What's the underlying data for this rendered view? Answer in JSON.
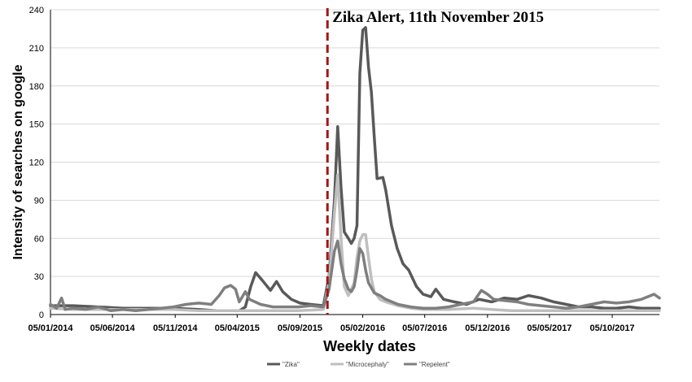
{
  "chart_data": {
    "type": "line",
    "xlabel": "Weekly dates",
    "ylabel": "Intensity of searches on google",
    "ylim": [
      0,
      240
    ],
    "yticks": [
      0,
      30,
      60,
      90,
      120,
      150,
      180,
      210,
      240
    ],
    "xlim": [
      "2014-01-05",
      "2018-01-28"
    ],
    "xticks": [
      "05/01/2014",
      "05/06/2014",
      "05/11/2014",
      "05/04/2015",
      "05/09/2015",
      "05/02/2016",
      "05/07/2016",
      "05/12/2016",
      "05/05/2017",
      "05/10/2017"
    ],
    "grid": "horizontal",
    "legend_position": "bottom",
    "annotation": {
      "text": "Zika Alert, 11th November 2015",
      "date": "2015-11-11",
      "color": "#a31515"
    },
    "series": [
      {
        "name": "\"Zika\"",
        "color": "#595959",
        "points": [
          [
            "2014-01-05",
            7
          ],
          [
            "2014-03-01",
            7
          ],
          [
            "2014-05-01",
            6
          ],
          [
            "2014-07-01",
            5
          ],
          [
            "2014-09-01",
            5
          ],
          [
            "2014-11-01",
            5
          ],
          [
            "2015-01-01",
            4
          ],
          [
            "2015-02-15",
            3
          ],
          [
            "2015-04-10",
            3
          ],
          [
            "2015-04-25",
            6
          ],
          [
            "2015-05-08",
            22
          ],
          [
            "2015-05-20",
            33
          ],
          [
            "2015-06-05",
            27
          ],
          [
            "2015-06-25",
            19
          ],
          [
            "2015-07-10",
            26
          ],
          [
            "2015-07-25",
            18
          ],
          [
            "2015-08-15",
            12
          ],
          [
            "2015-09-05",
            9
          ],
          [
            "2015-10-01",
            8
          ],
          [
            "2015-11-01",
            7
          ],
          [
            "2015-11-15",
            30
          ],
          [
            "2015-11-28",
            90
          ],
          [
            "2015-12-06",
            148
          ],
          [
            "2015-12-14",
            100
          ],
          [
            "2015-12-22",
            65
          ],
          [
            "2016-01-01",
            60
          ],
          [
            "2016-01-08",
            56
          ],
          [
            "2016-01-15",
            60
          ],
          [
            "2016-01-22",
            70
          ],
          [
            "2016-01-29",
            190
          ],
          [
            "2016-02-05",
            224
          ],
          [
            "2016-02-12",
            226
          ],
          [
            "2016-02-19",
            195
          ],
          [
            "2016-02-26",
            175
          ],
          [
            "2016-03-04",
            140
          ],
          [
            "2016-03-11",
            107
          ],
          [
            "2016-03-25",
            108
          ],
          [
            "2016-04-01",
            98
          ],
          [
            "2016-04-15",
            70
          ],
          [
            "2016-04-29",
            52
          ],
          [
            "2016-05-13",
            40
          ],
          [
            "2016-05-27",
            35
          ],
          [
            "2016-06-15",
            22
          ],
          [
            "2016-07-01",
            16
          ],
          [
            "2016-07-20",
            14
          ],
          [
            "2016-08-01",
            20
          ],
          [
            "2016-08-20",
            12
          ],
          [
            "2016-09-15",
            10
          ],
          [
            "2016-10-15",
            8
          ],
          [
            "2016-11-15",
            12
          ],
          [
            "2016-12-15",
            10
          ],
          [
            "2017-01-15",
            13
          ],
          [
            "2017-02-15",
            12
          ],
          [
            "2017-03-15",
            15
          ],
          [
            "2017-04-15",
            13
          ],
          [
            "2017-05-15",
            10
          ],
          [
            "2017-06-15",
            8
          ],
          [
            "2017-07-15",
            6
          ],
          [
            "2017-08-15",
            6
          ],
          [
            "2017-09-15",
            5
          ],
          [
            "2017-10-15",
            5
          ],
          [
            "2017-11-15",
            6
          ],
          [
            "2017-12-15",
            5
          ],
          [
            "2018-01-28",
            5
          ]
        ]
      },
      {
        "name": "\"Microcephaly\"",
        "color": "#bfbfbf",
        "points": [
          [
            "2014-01-05",
            5
          ],
          [
            "2014-03-01",
            4
          ],
          [
            "2014-05-01",
            4
          ],
          [
            "2014-07-01",
            4
          ],
          [
            "2014-09-01",
            4
          ],
          [
            "2014-11-01",
            4
          ],
          [
            "2015-01-01",
            3
          ],
          [
            "2015-03-01",
            3
          ],
          [
            "2015-05-01",
            3
          ],
          [
            "2015-07-01",
            3
          ],
          [
            "2015-09-01",
            3
          ],
          [
            "2015-11-01",
            4
          ],
          [
            "2015-11-15",
            25
          ],
          [
            "2015-11-28",
            80
          ],
          [
            "2015-12-06",
            110
          ],
          [
            "2015-12-14",
            60
          ],
          [
            "2015-12-22",
            22
          ],
          [
            "2016-01-01",
            15
          ],
          [
            "2016-01-08",
            20
          ],
          [
            "2016-01-15",
            25
          ],
          [
            "2016-01-22",
            45
          ],
          [
            "2016-01-29",
            58
          ],
          [
            "2016-02-05",
            63
          ],
          [
            "2016-02-12",
            63
          ],
          [
            "2016-02-19",
            45
          ],
          [
            "2016-02-26",
            28
          ],
          [
            "2016-03-04",
            18
          ],
          [
            "2016-03-18",
            12
          ],
          [
            "2016-04-01",
            10
          ],
          [
            "2016-05-01",
            7
          ],
          [
            "2016-06-01",
            5
          ],
          [
            "2016-07-01",
            4
          ],
          [
            "2016-09-01",
            4
          ],
          [
            "2016-11-01",
            5
          ],
          [
            "2016-12-15",
            4
          ],
          [
            "2017-02-01",
            3
          ],
          [
            "2017-04-01",
            3
          ],
          [
            "2017-06-01",
            3
          ],
          [
            "2017-08-01",
            3
          ],
          [
            "2017-10-01",
            3
          ],
          [
            "2017-12-01",
            3
          ],
          [
            "2018-01-28",
            3
          ]
        ]
      },
      {
        "name": "\"Repelent\"",
        "color": "#7f7f7f",
        "points": [
          [
            "2014-01-05",
            8
          ],
          [
            "2014-01-20",
            5
          ],
          [
            "2014-02-01",
            13
          ],
          [
            "2014-02-10",
            4
          ],
          [
            "2014-03-01",
            5
          ],
          [
            "2014-04-01",
            4
          ],
          [
            "2014-05-01",
            6
          ],
          [
            "2014-06-01",
            3
          ],
          [
            "2014-07-01",
            4
          ],
          [
            "2014-08-01",
            3
          ],
          [
            "2014-09-01",
            4
          ],
          [
            "2014-10-01",
            5
          ],
          [
            "2014-11-01",
            6
          ],
          [
            "2014-12-01",
            8
          ],
          [
            "2015-01-01",
            9
          ],
          [
            "2015-02-01",
            8
          ],
          [
            "2015-02-20",
            15
          ],
          [
            "2015-03-05",
            21
          ],
          [
            "2015-03-20",
            23
          ],
          [
            "2015-04-01",
            20
          ],
          [
            "2015-04-10",
            10
          ],
          [
            "2015-04-25",
            18
          ],
          [
            "2015-05-05",
            12
          ],
          [
            "2015-06-01",
            8
          ],
          [
            "2015-07-01",
            6
          ],
          [
            "2015-08-01",
            6
          ],
          [
            "2015-09-01",
            6
          ],
          [
            "2015-10-01",
            7
          ],
          [
            "2015-11-01",
            6
          ],
          [
            "2015-11-15",
            20
          ],
          [
            "2015-11-28",
            50
          ],
          [
            "2015-12-06",
            58
          ],
          [
            "2015-12-14",
            40
          ],
          [
            "2015-12-22",
            28
          ],
          [
            "2016-01-01",
            20
          ],
          [
            "2016-01-08",
            18
          ],
          [
            "2016-01-15",
            22
          ],
          [
            "2016-01-22",
            35
          ],
          [
            "2016-01-29",
            52
          ],
          [
            "2016-02-05",
            48
          ],
          [
            "2016-02-12",
            35
          ],
          [
            "2016-02-19",
            25
          ],
          [
            "2016-03-04",
            17
          ],
          [
            "2016-03-18",
            15
          ],
          [
            "2016-04-01",
            12
          ],
          [
            "2016-05-01",
            8
          ],
          [
            "2016-06-01",
            6
          ],
          [
            "2016-07-01",
            5
          ],
          [
            "2016-08-01",
            5
          ],
          [
            "2016-09-01",
            6
          ],
          [
            "2016-10-01",
            8
          ],
          [
            "2016-11-01",
            10
          ],
          [
            "2016-11-20",
            19
          ],
          [
            "2016-12-05",
            16
          ],
          [
            "2016-12-20",
            12
          ],
          [
            "2017-01-15",
            11
          ],
          [
            "2017-02-15",
            10
          ],
          [
            "2017-03-15",
            8
          ],
          [
            "2017-04-15",
            7
          ],
          [
            "2017-05-15",
            6
          ],
          [
            "2017-06-15",
            5
          ],
          [
            "2017-07-15",
            6
          ],
          [
            "2017-08-15",
            8
          ],
          [
            "2017-09-15",
            10
          ],
          [
            "2017-10-15",
            9
          ],
          [
            "2017-11-15",
            10
          ],
          [
            "2017-12-15",
            12
          ],
          [
            "2018-01-15",
            16
          ],
          [
            "2018-01-28",
            13
          ]
        ]
      }
    ]
  }
}
